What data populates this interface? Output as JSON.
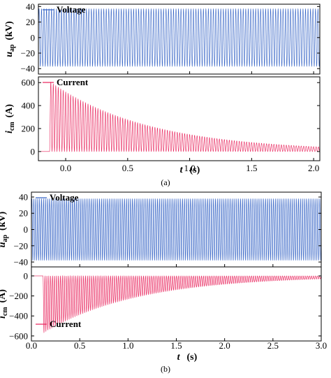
{
  "colors": {
    "voltage": "#2f5fc4",
    "current": "#e8205a",
    "axis": "#000000"
  },
  "chart_data": [
    {
      "id": "a",
      "type": "line",
      "caption": "(a)",
      "xlabel_var": "t",
      "xlabel_unit": "(s)",
      "xlim": [
        -0.22,
        2.05
      ],
      "xticks": [
        "0.0",
        "0.5",
        "1.0",
        "1.5",
        "2.0"
      ],
      "xtick_values": [
        0,
        0.5,
        1.0,
        1.5,
        2.0
      ],
      "panels": [
        {
          "ylabel_var": "u",
          "ylabel_sub": "ap",
          "ylabel_unit": "(kV)",
          "ylim": [
            -47,
            43
          ],
          "yticks": [
            "40",
            "20",
            "0",
            "−20",
            "−40"
          ],
          "ytick_values": [
            40,
            20,
            0,
            -20,
            -40
          ],
          "legend": "Voltage",
          "legend_position": "top-left",
          "series": [
            {
              "name": "Voltage",
              "kind": "sine",
              "amplitude": 37,
              "cycles_visible": 113,
              "x_start": -0.22,
              "x_end": 2.05
            }
          ]
        },
        {
          "ylabel_var": "i",
          "ylabel_sub": "cm",
          "ylabel_unit": "(A)",
          "ylim": [
            -80,
            650
          ],
          "yticks": [
            "600",
            "400",
            "200",
            "0"
          ],
          "ytick_values": [
            600,
            400,
            200,
            0
          ],
          "legend": "Current",
          "legend_position": "top-left",
          "series": [
            {
              "name": "Current",
              "kind": "decaying_unipolar",
              "switch_time": -0.13,
              "peak": 610,
              "tail_at_end": 40,
              "baseline": 0,
              "x_end": 2.05
            }
          ]
        }
      ]
    },
    {
      "id": "b",
      "type": "line",
      "caption": "(b)",
      "xlabel_var": "t",
      "xlabel_unit": "(s)",
      "xlim": [
        0,
        3.0
      ],
      "xticks": [
        "0.0",
        "0.5",
        "1.0",
        "1.5",
        "2.0",
        "2.5",
        "3.0"
      ],
      "xtick_values": [
        0,
        0.5,
        1.0,
        1.5,
        2.0,
        2.5,
        3.0
      ],
      "panels": [
        {
          "ylabel_var": "u",
          "ylabel_sub": "ap",
          "ylabel_unit": "(kV)",
          "ylim": [
            -46,
            46
          ],
          "yticks": [
            "40",
            "20",
            "0",
            "−20",
            "−40"
          ],
          "ytick_values": [
            40,
            20,
            0,
            -20,
            -40
          ],
          "legend": "Voltage",
          "legend_position": "top-left",
          "series": [
            {
              "name": "Voltage",
              "kind": "sine",
              "amplitude": 38,
              "cycles_visible": 150,
              "x_start": 0,
              "x_end": 3.0
            }
          ]
        },
        {
          "ylabel_var": "i",
          "ylabel_sub": "cm",
          "ylabel_unit": "(A)",
          "ylim": [
            -650,
            90
          ],
          "yticks": [
            "0",
            "−200",
            "−400",
            "−600"
          ],
          "ytick_values": [
            0,
            -200,
            -400,
            -600
          ],
          "legend": "Current",
          "legend_position": "bottom-left",
          "series": [
            {
              "name": "Current",
              "kind": "decaying_unipolar",
              "switch_time": 0.12,
              "peak": -570,
              "tail_at_end": -30,
              "baseline": 0,
              "x_end": 3.0
            }
          ]
        }
      ]
    }
  ]
}
